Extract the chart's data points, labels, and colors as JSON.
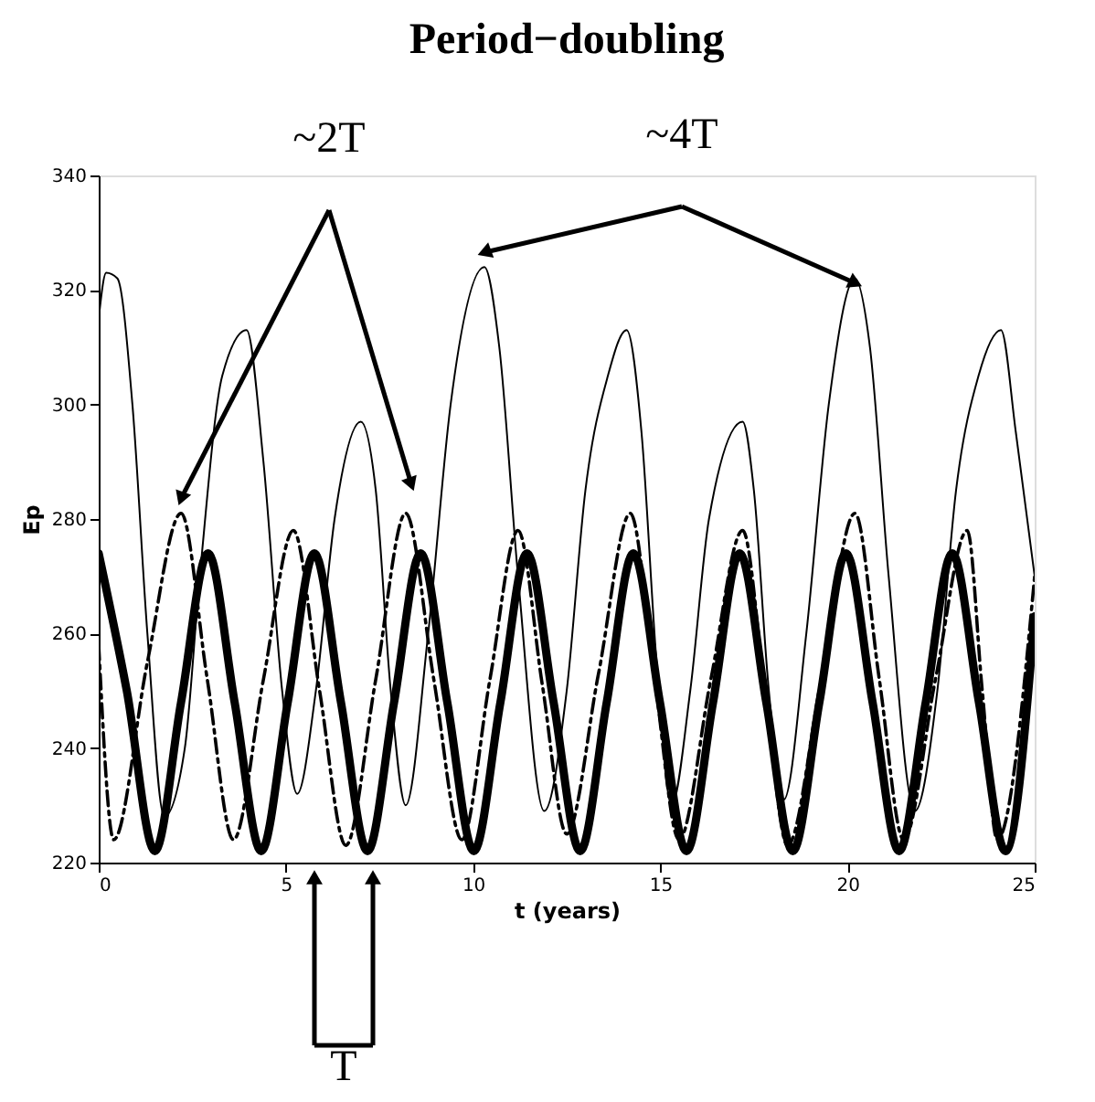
{
  "chart_data": {
    "type": "line",
    "title": "Period−doubling",
    "xlabel": "t (years)",
    "ylabel": "Ep",
    "xlim": [
      0,
      25
    ],
    "xticks": [
      0,
      5,
      10,
      15,
      20,
      25
    ],
    "ylim": [
      220,
      340
    ],
    "yticks": [
      220,
      240,
      260,
      280,
      300,
      320,
      340
    ],
    "grid": false,
    "marker": "none",
    "annotations": [
      {
        "text": "~2T",
        "x": 2.2,
        "y": 281
      },
      {
        "text": "~4T",
        "x": 10.3,
        "y": 324
      },
      "T"
    ],
    "series": [
      {
        "color": "#000000",
        "line_style": "solid",
        "x": [
          0,
          0.2,
          0.5,
          0.9,
          1.3,
          1.75,
          2.3,
          2.7,
          3.3,
          3.95,
          4.4,
          4.9,
          5.3,
          5.8,
          6.3,
          7.0,
          7.4,
          7.8,
          8.2,
          8.8,
          9.4,
          10.3,
          10.7,
          11.2,
          11.9,
          12.5,
          13.0,
          13.6,
          14.1,
          14.5,
          14.9,
          15.3,
          15.8,
          16.3,
          17.2,
          17.5,
          17.9,
          18.3,
          18.9,
          19.5,
          20.2,
          20.6,
          21.1,
          21.8,
          22.4,
          22.9,
          23.5,
          24.1,
          24.5,
          25
        ],
        "values": [
          315,
          323,
          322,
          300,
          260,
          228,
          240,
          270,
          305,
          313,
          290,
          250,
          232,
          250,
          280,
          297,
          285,
          250,
          230,
          260,
          300,
          324,
          310,
          270,
          229,
          250,
          285,
          305,
          313,
          295,
          255,
          230,
          250,
          280,
          297,
          285,
          250,
          231,
          260,
          300,
          322,
          310,
          270,
          229,
          250,
          285,
          305,
          313,
          295,
          270
        ]
      },
      {
        "color": "#000000",
        "line_style": "dashed",
        "x": [
          0,
          0.4,
          1.3,
          2.2,
          2.9,
          3.6,
          4.4,
          5.2,
          5.9,
          6.6,
          7.4,
          8.2,
          8.95,
          9.7,
          10.45,
          11.2,
          11.85,
          12.5,
          13.35,
          14.2,
          14.85,
          15.5,
          16.35,
          17.2,
          17.8,
          18.4,
          19.3,
          20.2,
          20.85,
          21.5,
          22.35,
          23.2,
          23.6,
          24.0,
          25
        ],
        "values": [
          258,
          224,
          255,
          281,
          252,
          224,
          252,
          278,
          250,
          223,
          252,
          281,
          252,
          224,
          252,
          278,
          251,
          225,
          253,
          281,
          252,
          224,
          252,
          278,
          250,
          223,
          252,
          281,
          252,
          224,
          252,
          278,
          250,
          224,
          270
        ]
      },
      {
        "color": "#000000",
        "line_style": "solid",
        "x": [
          0,
          0.75,
          1.5,
          2.2,
          2.92,
          3.63,
          4.34,
          5.05,
          5.76,
          6.47,
          7.18,
          7.89,
          8.6,
          9.31,
          10.02,
          10.73,
          11.44,
          12.15,
          12.86,
          13.57,
          14.28,
          14.99,
          15.7,
          16.41,
          17.12,
          17.83,
          18.54,
          19.25,
          19.96,
          20.67,
          21.38,
          22.09,
          22.8,
          23.51,
          24.22,
          25
        ],
        "values": [
          274,
          250,
          222,
          248,
          274,
          248,
          222,
          248,
          274,
          248,
          222,
          248,
          274,
          248,
          222,
          248,
          274,
          248,
          222,
          248,
          274,
          248,
          222,
          248,
          274,
          248,
          222,
          248,
          274,
          248,
          222,
          248,
          274,
          248,
          222,
          263
        ]
      }
    ]
  }
}
